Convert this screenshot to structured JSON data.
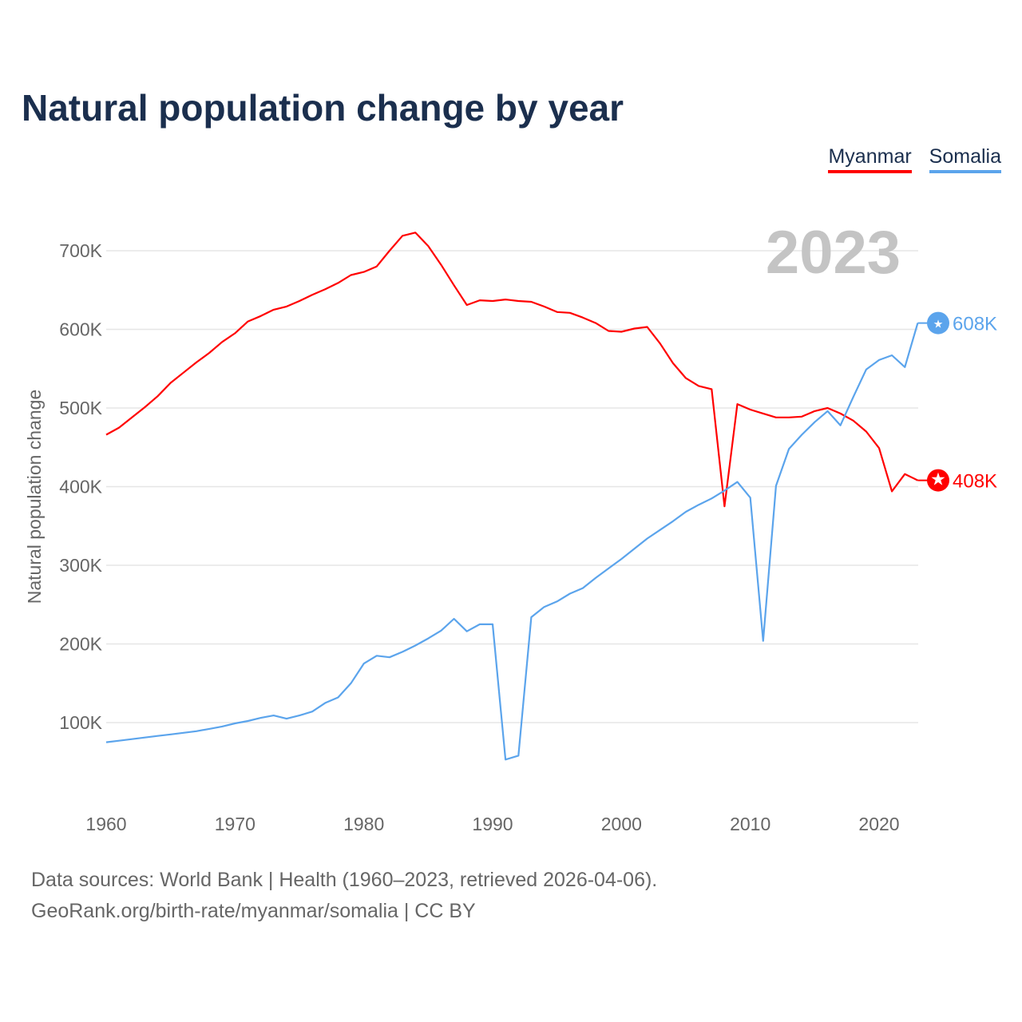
{
  "title": "Natural population change by year",
  "legend": [
    {
      "label": "Myanmar",
      "color": "#ff0000"
    },
    {
      "label": "Somalia",
      "color": "#5ba4ec"
    }
  ],
  "year_label": "2023",
  "footer": {
    "line1": "Data sources: World Bank | Health (1960–2023, retrieved 2026-04-06).",
    "line2": "GeoRank.org/birth-rate/myanmar/somalia | CC BY"
  },
  "chart_data": {
    "type": "line",
    "title": "Natural population change by year",
    "xlabel": "",
    "ylabel": "Natural population change",
    "xlim": [
      1960,
      2023
    ],
    "ylim": [
      0,
      750000
    ],
    "grid": true,
    "legend_position": "top-right",
    "x_ticks": [
      1960,
      1970,
      1980,
      1990,
      2000,
      2010,
      2020
    ],
    "y_ticks": [
      100000,
      200000,
      300000,
      400000,
      500000,
      600000,
      700000
    ],
    "y_tick_labels": [
      "100K",
      "200K",
      "300K",
      "400K",
      "500K",
      "600K",
      "700K"
    ],
    "x_start": 1960,
    "series": [
      {
        "name": "Myanmar",
        "color": "#ff0000",
        "end_label": "408K",
        "values_k": [
          466,
          475,
          488,
          501,
          515,
          532,
          545,
          558,
          570,
          584,
          595,
          610,
          617,
          625,
          629,
          636,
          644,
          651,
          659,
          669,
          673,
          680,
          700,
          719,
          723,
          706,
          682,
          656,
          631,
          637,
          636,
          638,
          636,
          635,
          629,
          622,
          621,
          615,
          608,
          598,
          597,
          601,
          603,
          582,
          557,
          538,
          528,
          524,
          375,
          505,
          498,
          493,
          488,
          488,
          489,
          496,
          500,
          493,
          484,
          470,
          449,
          394,
          416,
          408
        ]
      },
      {
        "name": "Somalia",
        "color": "#5ba4ec",
        "end_label": "608K",
        "values_k": [
          75,
          77,
          79,
          81,
          83,
          85,
          87,
          89,
          92,
          95,
          99,
          102,
          106,
          109,
          105,
          109,
          114,
          125,
          132,
          150,
          175,
          185,
          183,
          190,
          198,
          207,
          217,
          232,
          216,
          225,
          225,
          53,
          58,
          234,
          247,
          254,
          264,
          271,
          284,
          296,
          308,
          321,
          334,
          345,
          356,
          368,
          377,
          385,
          395,
          406,
          386,
          204,
          401,
          448,
          466,
          482,
          496,
          478,
          514,
          549,
          561,
          567,
          552,
          608
        ]
      }
    ]
  }
}
